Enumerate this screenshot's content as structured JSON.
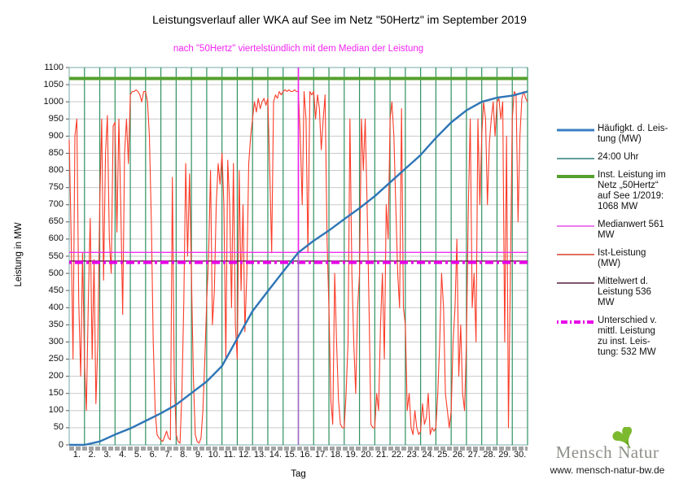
{
  "title": "Leistungsverlauf aller WKA auf See im Netz \"50Hertz\" im September 2019",
  "subtitle": "nach \"50Hertz\" viertelstündlich mit dem Median der Leistung",
  "subtitle_color": "#f224f2",
  "y_axis": {
    "label": "Leistung in MW",
    "min": 0,
    "max": 1100,
    "step": 50
  },
  "x_axis": {
    "label": "Tag",
    "tick_labels": [
      "1.",
      "2.",
      "3.",
      "4.",
      "5.",
      "6.",
      "7.",
      "8.",
      "9.",
      "10.",
      "11.",
      "12.",
      "13.",
      "14.",
      "15.",
      "16.",
      "17.",
      "18.",
      "19.",
      "20.",
      "21.",
      "22.",
      "23.",
      "24.",
      "25.",
      "26.",
      "27.",
      "28.",
      "29.",
      "30."
    ]
  },
  "legend": [
    {
      "name": "haeufigkeit",
      "label": "Häufigkt. d. Leis-\ntung (MW)",
      "color": "#3a7fc2",
      "width": 3,
      "dash": ""
    },
    {
      "name": "mitternacht",
      "label": "24:00 Uhr",
      "color": "#2e7d7d",
      "width": 1.4,
      "dash": ""
    },
    {
      "name": "inst-leistung",
      "label": "Inst. Leistung im\nNetz „50Hertz“\nauf See 1/2019:\n1068 MW",
      "color": "#55a02e",
      "width": 4,
      "dash": ""
    },
    {
      "name": "medianwert",
      "label": "Medianwert 561\nMW",
      "color": "#e54fe5",
      "width": 1.4,
      "dash": ""
    },
    {
      "name": "ist-leistung",
      "label": "Ist-Leistung\n(MW)",
      "color": "#d9402e",
      "width": 1.4,
      "dash": ""
    },
    {
      "name": "mittelwert",
      "label": "Mittelwert d.\nLeistung 536\nMW",
      "color": "#561e3e",
      "width": 1.4,
      "dash": ""
    },
    {
      "name": "unterschied",
      "label": "Unterschied v.\nmittl. Leistung\nzu inst. Leis-\ntung: 532 MW",
      "color": "#e800e8",
      "width": 4,
      "dash": "2 3 8 3"
    }
  ],
  "logo": {
    "name_left": "Mensch",
    "name_right": "Natur",
    "url": "www. mensch-natur-bw.de",
    "leaf_color": "#7cb92e"
  },
  "chart_data": {
    "type": "line",
    "title": "Leistungsverlauf aller WKA auf See im Netz \"50Hertz\" im September 2019",
    "subtitle": "nach \"50Hertz\" viertelstündlich mit dem Median der Leistung",
    "xlabel": "Tag",
    "ylabel": "Leistung in MW",
    "xlim_days": [
      0,
      30
    ],
    "ylim": [
      0,
      1100
    ],
    "y_tick_step": 50,
    "grid": true,
    "legend_position": "right",
    "grid_color": "#c9c9c9",
    "frame_color": "#74a8a8",
    "day_lines": {
      "label": "24:00 Uhr",
      "color": "#2f9160",
      "width": 1.2,
      "every_days": 1
    },
    "axis_band": {
      "color": "#a3a3a3",
      "dash": "6 2",
      "width": 5
    },
    "reference_lines": [
      {
        "name": "inst-leistung-1068",
        "label": "Inst. Leistung im Netz „50Hertz“ auf See 1/2019",
        "value": 1068,
        "color": "#55a02e",
        "width": 4,
        "dash": ""
      },
      {
        "name": "medianwert-561",
        "label": "Medianwert",
        "value": 561,
        "color": "#ee2fee",
        "width": 1.4,
        "dash": ""
      },
      {
        "name": "mittelwert-536",
        "label": "Mittelwert d. Leistung",
        "value": 536,
        "color": "#561e3e",
        "width": 1.4,
        "dash": ""
      },
      {
        "name": "unterschied-532",
        "label": "Unterschied v. mittl. Leistung zu inst. Leistung",
        "value": 532,
        "color": "#e800e8",
        "width": 4,
        "dash": "3 4 10 4"
      }
    ],
    "median_marker": {
      "day": 15,
      "crosses_at_mw": 561,
      "color_top": "#f020f0",
      "color_bottom": "#a36cc8",
      "width": 1.6
    },
    "series": [
      {
        "name": "Häufigkt. d. Leistung (MW)",
        "color": "#2e75b6",
        "width": 2.4,
        "x_step_days": 1,
        "values": [
          0,
          0,
          10,
          30,
          48,
          70,
          92,
          117,
          151,
          185,
          230,
          310,
          390,
          448,
          505,
          561,
          595,
          625,
          658,
          690,
          725,
          765,
          805,
          845,
          895,
          940,
          975,
          1000,
          1012,
          1018,
          1030
        ]
      },
      {
        "name": "Ist-Leistung (MW)",
        "color": "#fa3c28",
        "width": 1.1,
        "x_step_days": 0.125,
        "values": [
          890,
          620,
          250,
          900,
          950,
          420,
          200,
          560,
          240,
          100,
          420,
          660,
          250,
          540,
          120,
          300,
          700,
          950,
          480,
          850,
          960,
          600,
          500,
          930,
          940,
          620,
          950,
          700,
          380,
          850,
          950,
          820,
          1020,
          1030,
          1030,
          1035,
          1030,
          1020,
          1000,
          1030,
          1030,
          1000,
          900,
          650,
          300,
          100,
          30,
          20,
          15,
          10,
          25,
          40,
          20,
          15,
          780,
          200,
          30,
          10,
          5,
          150,
          420,
          820,
          550,
          790,
          500,
          200,
          30,
          10,
          5,
          20,
          100,
          250,
          420,
          550,
          800,
          350,
          450,
          700,
          820,
          760,
          850,
          700,
          250,
          830,
          700,
          400,
          820,
          350,
          250,
          800,
          450,
          700,
          330,
          500,
          820,
          900,
          950,
          1000,
          970,
          1010,
          980,
          1000,
          1010,
          990,
          1010,
          800,
          560,
          1000,
          1020,
          1010,
          1030,
          1020,
          1030,
          1035,
          1030,
          1035,
          1030,
          1030,
          1035,
          1030,
          1030,
          900,
          700,
          1030,
          950,
          560,
          1030,
          1020,
          1030,
          950,
          1020,
          980,
          860,
          950,
          1020,
          600,
          400,
          130,
          60,
          500,
          300,
          130,
          60,
          50,
          50,
          150,
          300,
          950,
          500,
          300,
          150,
          400,
          500,
          950,
          800,
          950,
          700,
          400,
          60,
          50,
          50,
          150,
          100,
          350,
          500,
          250,
          700,
          600,
          950,
          1000,
          900,
          700,
          500,
          400,
          980,
          400,
          350,
          100,
          150,
          50,
          30,
          100,
          50,
          30,
          40,
          120,
          60,
          80,
          150,
          30,
          50,
          40,
          50,
          150,
          300,
          500,
          400,
          150,
          100,
          50,
          100,
          300,
          400,
          600,
          200,
          350,
          150,
          100,
          300,
          700,
          950,
          400,
          500,
          300,
          950,
          700,
          900,
          1000,
          950,
          700,
          880,
          950,
          1000,
          900,
          1000,
          1010,
          950,
          1000,
          300,
          900,
          50,
          500,
          950,
          1030,
          1020,
          650,
          900,
          1010,
          1030,
          1010,
          1000
        ]
      }
    ]
  }
}
